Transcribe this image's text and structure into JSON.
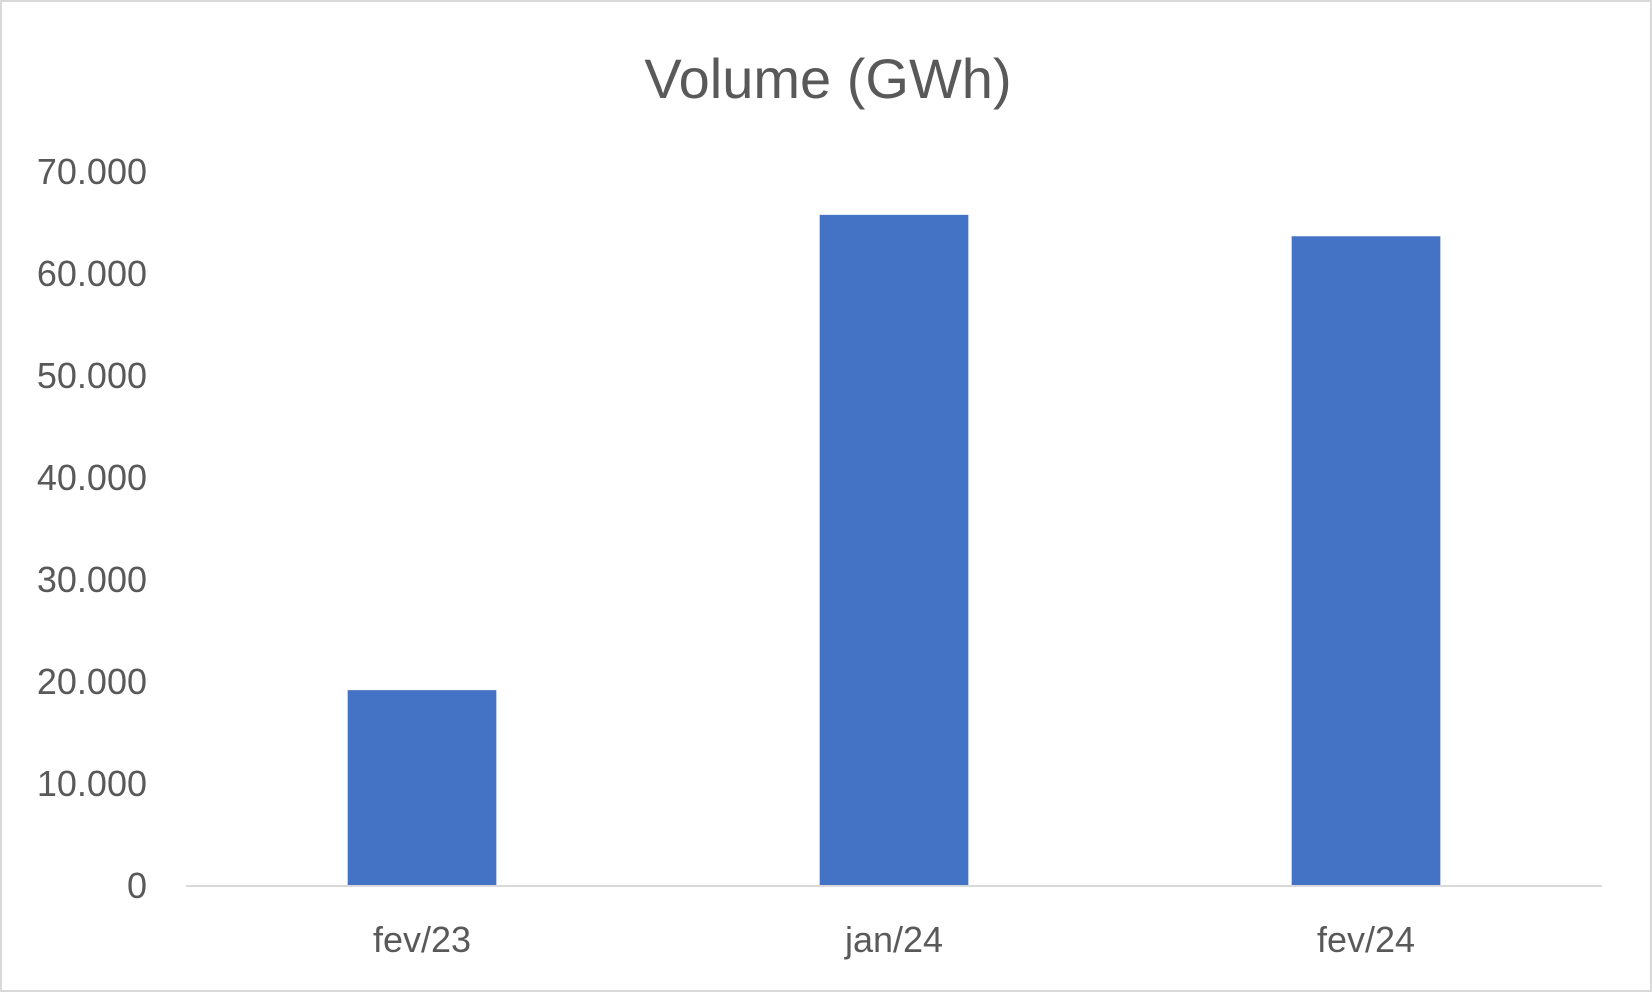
{
  "chart_data": {
    "type": "bar",
    "title": "Volume (GWh)",
    "xlabel": "",
    "ylabel": "",
    "categories": [
      "fev/23",
      "jan/24",
      "fev/24"
    ],
    "values": [
      19200,
      65800,
      63700
    ],
    "ylim": [
      0,
      70000
    ],
    "yticks": [
      0,
      10000,
      20000,
      30000,
      40000,
      50000,
      60000,
      70000
    ],
    "ytick_labels": [
      "0",
      "10.000",
      "20.000",
      "30.000",
      "40.000",
      "50.000",
      "60.000",
      "70.000"
    ],
    "grid": false,
    "legend": "none",
    "bar_color": "#4472C4",
    "axis_color": "#d9d9d9",
    "text_color": "#595959"
  }
}
